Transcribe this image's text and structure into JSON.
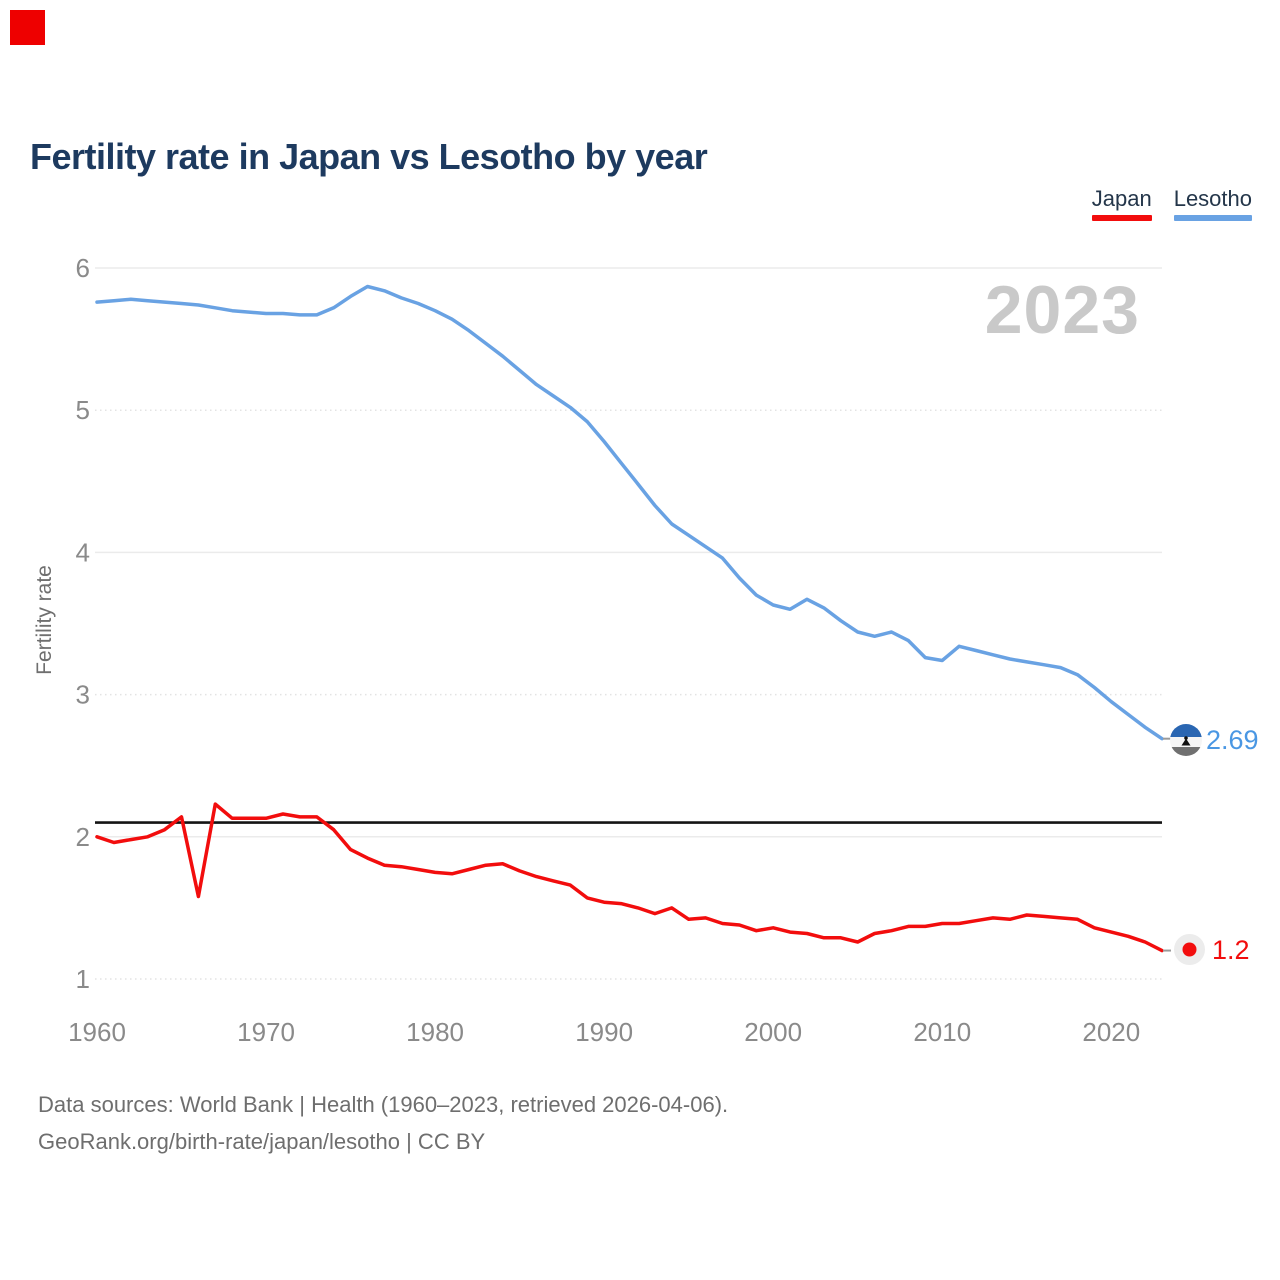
{
  "brand": {
    "color": "#ee0000"
  },
  "header": {
    "title": "Fertility rate in Japan vs Lesotho by year"
  },
  "legend": [
    {
      "label": "Japan",
      "color": "#f20d0d"
    },
    {
      "label": "Lesotho",
      "color": "#69a2e3"
    }
  ],
  "annotations": {
    "year_watermark": "2023"
  },
  "end_labels": {
    "lesotho": {
      "value": "2.69",
      "color": "#4a97e3",
      "icon": "lesotho-flag-icon"
    },
    "japan": {
      "value": "1.2",
      "color": "#f20d0d",
      "icon": "japan-flag-icon"
    }
  },
  "footer": {
    "line1": "Data sources: World Bank | Health (1960–2023, retrieved 2026-04-06).",
    "line2": "GeoRank.org/birth-rate/japan/lesotho | CC BY"
  },
  "colors": {
    "title": "#1d3a5f",
    "axis_text": "#8a8a8a",
    "grid_solid": "#ebebeb",
    "grid_dotted": "#e3e3e3",
    "reference_line": "#141414",
    "watermark": "#c9c9c9",
    "footer_text": "#6e6e6e",
    "japan_red": "#f20d0d",
    "lesotho_blue": "#69a2e3"
  },
  "chart_data": {
    "type": "line",
    "title": "Fertility rate in Japan vs Lesotho by year",
    "xlabel": "",
    "ylabel": "Fertility rate",
    "xlim": [
      1960,
      2023
    ],
    "ylim": [
      1,
      6
    ],
    "xticks": [
      1960,
      1970,
      1980,
      1990,
      2000,
      2010,
      2020
    ],
    "yticks": [
      1,
      2,
      3,
      4,
      5,
      6
    ],
    "grid": "horizontal",
    "legend_position": "top-right",
    "reference_line": {
      "value": 2.1
    },
    "x": [
      1960,
      1961,
      1962,
      1963,
      1964,
      1965,
      1966,
      1967,
      1968,
      1969,
      1970,
      1971,
      1972,
      1973,
      1974,
      1975,
      1976,
      1977,
      1978,
      1979,
      1980,
      1981,
      1982,
      1983,
      1984,
      1985,
      1986,
      1987,
      1988,
      1989,
      1990,
      1991,
      1992,
      1993,
      1994,
      1995,
      1996,
      1997,
      1998,
      1999,
      2000,
      2001,
      2002,
      2003,
      2004,
      2005,
      2006,
      2007,
      2008,
      2009,
      2010,
      2011,
      2012,
      2013,
      2014,
      2015,
      2016,
      2017,
      2018,
      2019,
      2020,
      2021,
      2022,
      2023
    ],
    "series": [
      {
        "name": "Japan",
        "color": "#f20d0d",
        "end_label": "1.2",
        "values": [
          2.0,
          1.96,
          1.98,
          2.0,
          2.05,
          2.14,
          1.58,
          2.23,
          2.13,
          2.13,
          2.13,
          2.16,
          2.14,
          2.14,
          2.05,
          1.91,
          1.85,
          1.8,
          1.79,
          1.77,
          1.75,
          1.74,
          1.77,
          1.8,
          1.81,
          1.76,
          1.72,
          1.69,
          1.66,
          1.57,
          1.54,
          1.53,
          1.5,
          1.46,
          1.5,
          1.42,
          1.43,
          1.39,
          1.38,
          1.34,
          1.36,
          1.33,
          1.32,
          1.29,
          1.29,
          1.26,
          1.32,
          1.34,
          1.37,
          1.37,
          1.39,
          1.39,
          1.41,
          1.43,
          1.42,
          1.45,
          1.44,
          1.43,
          1.42,
          1.36,
          1.33,
          1.3,
          1.26,
          1.2
        ]
      },
      {
        "name": "Lesotho",
        "color": "#69a2e3",
        "end_label": "2.69",
        "values": [
          5.76,
          5.77,
          5.78,
          5.77,
          5.76,
          5.75,
          5.74,
          5.72,
          5.7,
          5.69,
          5.68,
          5.68,
          5.67,
          5.67,
          5.72,
          5.8,
          5.87,
          5.84,
          5.79,
          5.75,
          5.7,
          5.64,
          5.56,
          5.47,
          5.38,
          5.28,
          5.18,
          5.1,
          5.02,
          4.92,
          4.78,
          4.63,
          4.48,
          4.33,
          4.2,
          4.12,
          4.04,
          3.96,
          3.82,
          3.7,
          3.63,
          3.6,
          3.67,
          3.61,
          3.52,
          3.44,
          3.41,
          3.44,
          3.38,
          3.26,
          3.24,
          3.34,
          3.31,
          3.28,
          3.25,
          3.23,
          3.21,
          3.19,
          3.14,
          3.05,
          2.95,
          2.86,
          2.77,
          2.69
        ]
      }
    ]
  }
}
